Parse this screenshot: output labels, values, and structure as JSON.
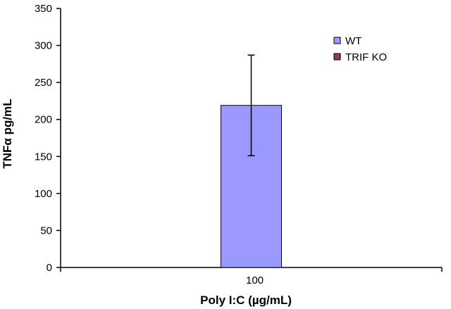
{
  "chart_data": {
    "type": "bar",
    "categories": [
      "100"
    ],
    "series": [
      {
        "name": "WT",
        "values": [
          219
        ],
        "error_low": [
          151
        ],
        "error_high": [
          287
        ],
        "color": "#9999FF"
      },
      {
        "name": "TRIF KO",
        "values": [
          null
        ],
        "color": "#993366"
      }
    ],
    "xlabel": "Poly I:C (µg/mL)",
    "ylabel": "TNFα pg/mL",
    "ylim": [
      0,
      350
    ],
    "yticks": [
      0,
      50,
      100,
      150,
      200,
      250,
      300,
      350
    ],
    "grid": false,
    "legend_position": "top-right"
  }
}
